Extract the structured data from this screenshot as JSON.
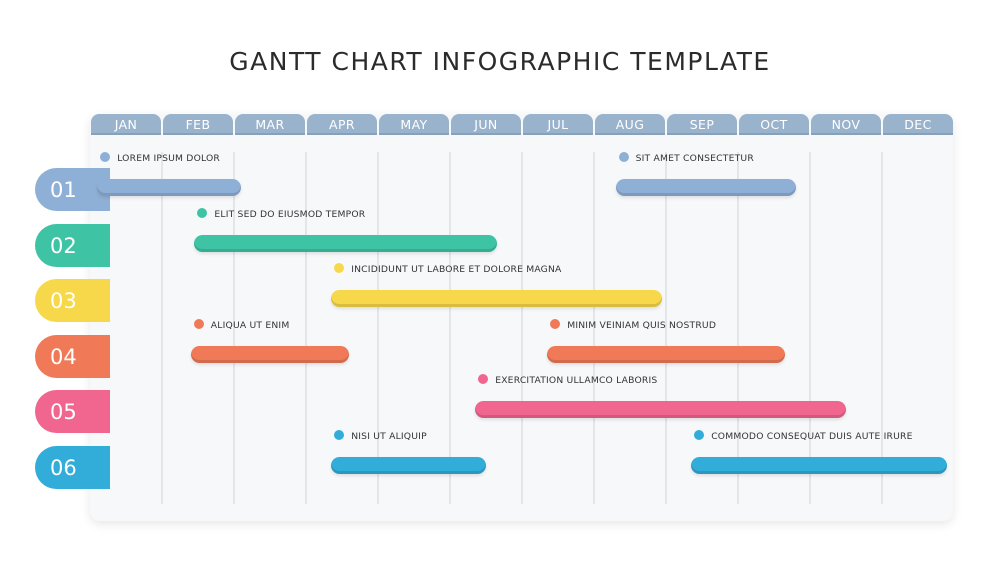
{
  "title": "GANTT CHART INFOGRAPHIC TEMPLATE",
  "chart_data": {
    "type": "gantt",
    "months": [
      "JAN",
      "FEB",
      "MAR",
      "APR",
      "MAY",
      "JUN",
      "JUL",
      "AUG",
      "SEP",
      "OCT",
      "NOV",
      "DEC"
    ],
    "rows": [
      {
        "label": "01",
        "color": "#8fb0d6",
        "tasks": [
          {
            "name": "LOREM IPSUM DOLOR",
            "start": 0.1,
            "end": 2.1
          },
          {
            "name": "SIT AMET CONSECTETUR",
            "start": 7.3,
            "end": 9.8
          }
        ]
      },
      {
        "label": "02",
        "color": "#3ec4a4",
        "tasks": [
          {
            "name": "ELIT SED DO EIUSMOD TEMPOR",
            "start": 1.45,
            "end": 5.65
          }
        ]
      },
      {
        "label": "03",
        "color": "#f7d84a",
        "tasks": [
          {
            "name": "INCIDIDUNT UT LABORE ET DOLORE MAGNA",
            "start": 3.35,
            "end": 7.95
          }
        ]
      },
      {
        "label": "04",
        "color": "#f07a58",
        "tasks": [
          {
            "name": "ALIQUA UT ENIM",
            "start": 1.4,
            "end": 3.6
          },
          {
            "name": "MINIM VEINIAM QUIS NOSTRUD",
            "start": 6.35,
            "end": 9.65
          }
        ]
      },
      {
        "label": "05",
        "color": "#f0668f",
        "tasks": [
          {
            "name": "EXERCITATION ULLAMCO LABORIS",
            "start": 5.35,
            "end": 10.5
          }
        ]
      },
      {
        "label": "06",
        "color": "#32acd8",
        "tasks": [
          {
            "name": "NISI UT ALIQUIP",
            "start": 3.35,
            "end": 5.5
          },
          {
            "name": "COMMODO CONSEQUAT DUIS AUTE IRURE",
            "start": 8.35,
            "end": 11.9
          }
        ]
      }
    ]
  }
}
